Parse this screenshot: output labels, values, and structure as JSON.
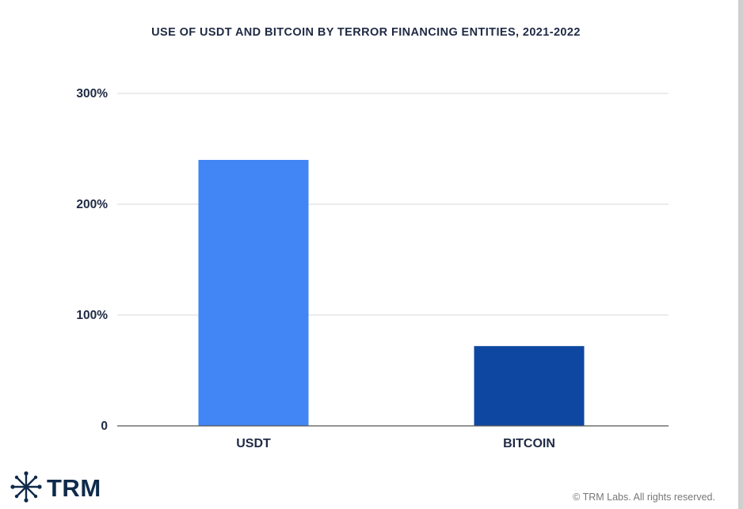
{
  "chart_data": {
    "type": "bar",
    "title": "USE OF USDT AND BITCOIN BY TERROR FINANCING ENTITIES, 2021-2022",
    "categories": [
      "USDT",
      "BITCOIN"
    ],
    "values": [
      240,
      72
    ],
    "unit": "%",
    "bar_colors": [
      "#4285f4",
      "#0d47a1"
    ],
    "ylim": [
      0,
      300
    ],
    "yticks": [
      {
        "value": 0,
        "label": "0"
      },
      {
        "value": 100,
        "label": "100%"
      },
      {
        "value": 200,
        "label": "200%"
      },
      {
        "value": 300,
        "label": "300%"
      }
    ],
    "xlabel": "",
    "ylabel": "",
    "grid": true,
    "legend": "none"
  },
  "footer": {
    "logo_text": "TRM",
    "logo_icon": "snowflake-asterisk-icon",
    "copyright": "© TRM Labs. All rights reserved."
  },
  "colors": {
    "title": "#1f2a44",
    "logo": "#0f2a4a"
  }
}
